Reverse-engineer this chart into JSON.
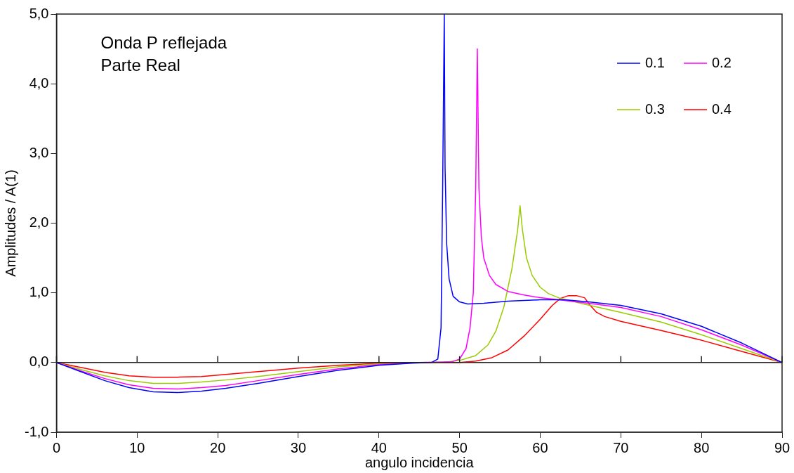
{
  "chart_data": {
    "type": "line",
    "title": "Onda P reflejada",
    "subtitle": "Parte Real",
    "xlabel": "angulo incidencia",
    "ylabel": "Amplitudes / A(1)",
    "xlim": [
      0,
      90
    ],
    "xticks": [
      0,
      10,
      20,
      30,
      40,
      50,
      60,
      70,
      80,
      90
    ],
    "ylim": [
      -1,
      5
    ],
    "yticks": [
      {
        "value": -1,
        "label": "-1,0"
      },
      {
        "value": 0,
        "label": "0,0"
      },
      {
        "value": 1,
        "label": "1,0"
      },
      {
        "value": 2,
        "label": "2,0"
      },
      {
        "value": 3,
        "label": "3,0"
      },
      {
        "value": 4,
        "label": "4,0"
      },
      {
        "value": 5,
        "label": "5,0"
      }
    ],
    "grid": false,
    "ref_lines": [
      {
        "axis": "y",
        "value": 0,
        "color": "#222222"
      }
    ],
    "legend": "top right",
    "marker": "none",
    "line_style": "solid",
    "series": [
      {
        "name": "0.1",
        "color": "#0000ff",
        "x": [
          0,
          3,
          6,
          9,
          12,
          15,
          18,
          21,
          25,
          30,
          35,
          40,
          44,
          46.5,
          47.3,
          47.7,
          47.9,
          48.1,
          48.2,
          48.4,
          48.7,
          49.2,
          50,
          51,
          53,
          56,
          60,
          63,
          66,
          70,
          75,
          80,
          85,
          90
        ],
        "values": [
          0,
          -0.13,
          -0.26,
          -0.36,
          -0.42,
          -0.43,
          -0.41,
          -0.37,
          -0.3,
          -0.2,
          -0.11,
          -0.04,
          -0.01,
          0,
          0.05,
          0.5,
          2.5,
          5.0,
          2.8,
          1.7,
          1.2,
          0.95,
          0.87,
          0.84,
          0.85,
          0.88,
          0.9,
          0.9,
          0.87,
          0.82,
          0.7,
          0.52,
          0.28,
          0
        ]
      },
      {
        "name": "0.2",
        "color": "#ff00ff",
        "x": [
          0,
          3,
          6,
          9,
          12,
          15,
          18,
          21,
          25,
          30,
          35,
          40,
          45,
          49,
          50,
          50.8,
          51.3,
          51.7,
          52,
          52.2,
          52.4,
          52.7,
          53,
          53.7,
          54.5,
          56,
          58,
          60,
          63,
          66,
          70,
          75,
          80,
          85,
          90
        ],
        "values": [
          0,
          -0.12,
          -0.23,
          -0.32,
          -0.37,
          -0.38,
          -0.36,
          -0.33,
          -0.26,
          -0.17,
          -0.09,
          -0.03,
          0,
          0.01,
          0.05,
          0.2,
          0.5,
          1.0,
          2.5,
          4.5,
          2.5,
          1.8,
          1.5,
          1.25,
          1.12,
          1.02,
          0.97,
          0.93,
          0.89,
          0.85,
          0.79,
          0.66,
          0.47,
          0.25,
          0
        ]
      },
      {
        "name": "0.3",
        "color": "#99cc00",
        "x": [
          0,
          3,
          6,
          9,
          12,
          15,
          18,
          21,
          25,
          30,
          35,
          40,
          45,
          48,
          50,
          52,
          53.5,
          54.5,
          55.5,
          56.5,
          57.2,
          57.5,
          57.8,
          58.3,
          59,
          60,
          61,
          62.5,
          65,
          70,
          75,
          80,
          85,
          90
        ],
        "values": [
          0,
          -0.1,
          -0.19,
          -0.26,
          -0.3,
          -0.3,
          -0.28,
          -0.25,
          -0.2,
          -0.13,
          -0.06,
          -0.02,
          0,
          0,
          0.03,
          0.1,
          0.25,
          0.45,
          0.8,
          1.35,
          1.9,
          2.25,
          1.9,
          1.5,
          1.25,
          1.08,
          0.99,
          0.92,
          0.85,
          0.72,
          0.58,
          0.4,
          0.2,
          0
        ]
      },
      {
        "name": "0.4",
        "color": "#ff0000",
        "x": [
          0,
          3,
          6,
          9,
          12,
          15,
          18,
          21,
          25,
          30,
          35,
          40,
          45,
          50,
          52,
          54,
          56,
          58,
          60,
          61.5,
          62.5,
          63.5,
          64.5,
          65.5,
          66.2,
          67,
          68,
          70,
          75,
          80,
          85,
          90
        ],
        "values": [
          0,
          -0.07,
          -0.14,
          -0.19,
          -0.21,
          -0.21,
          -0.2,
          -0.17,
          -0.13,
          -0.08,
          -0.04,
          -0.01,
          0,
          0,
          0.02,
          0.07,
          0.18,
          0.38,
          0.62,
          0.82,
          0.92,
          0.96,
          0.96,
          0.93,
          0.82,
          0.72,
          0.66,
          0.59,
          0.46,
          0.32,
          0.16,
          0
        ]
      }
    ]
  }
}
